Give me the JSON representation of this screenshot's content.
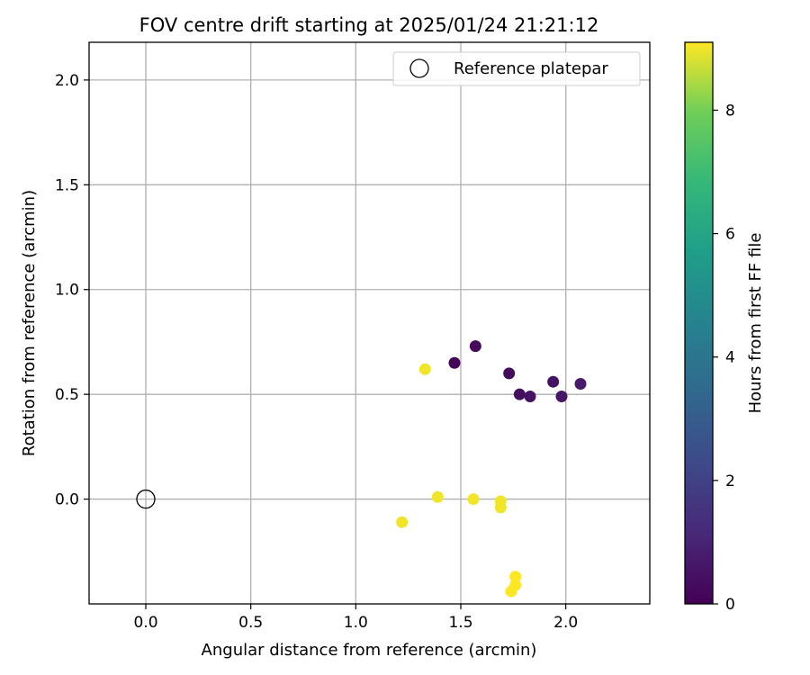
{
  "chart_data": {
    "type": "scatter",
    "title": "FOV centre drift starting at 2025/01/24 21:21:12",
    "xlabel": "Angular distance from reference (arcmin)",
    "ylabel": "Rotation from reference (arcmin)",
    "xlim": [
      -0.27,
      2.4
    ],
    "ylim": [
      -0.5,
      2.18
    ],
    "xticks": [
      "0.0",
      "0.5",
      "1.0",
      "1.5",
      "2.0"
    ],
    "yticks": [
      "0.0",
      "0.5",
      "1.0",
      "1.5",
      "2.0"
    ],
    "grid": true,
    "legend": {
      "position": "upper right",
      "entries": [
        "Reference platepar"
      ]
    },
    "reference": {
      "x": 0.0,
      "y": 0.0
    },
    "colorbar": {
      "label": "Hours from first FF file",
      "range": [
        0,
        9.1
      ],
      "ticks": [
        "0",
        "2",
        "4",
        "6",
        "8"
      ],
      "colormap": "viridis"
    },
    "points": [
      {
        "x": 1.47,
        "y": 0.65,
        "hours": 0.1
      },
      {
        "x": 1.57,
        "y": 0.73,
        "hours": 0.2
      },
      {
        "x": 1.73,
        "y": 0.6,
        "hours": 0.3
      },
      {
        "x": 1.78,
        "y": 0.5,
        "hours": 0.4
      },
      {
        "x": 1.83,
        "y": 0.49,
        "hours": 0.5
      },
      {
        "x": 1.94,
        "y": 0.56,
        "hours": 0.5
      },
      {
        "x": 1.98,
        "y": 0.49,
        "hours": 0.6
      },
      {
        "x": 2.07,
        "y": 0.55,
        "hours": 0.7
      },
      {
        "x": 1.33,
        "y": 0.62,
        "hours": 9.0
      },
      {
        "x": 1.39,
        "y": 0.01,
        "hours": 9.0
      },
      {
        "x": 1.56,
        "y": 0.0,
        "hours": 9.0
      },
      {
        "x": 1.69,
        "y": -0.01,
        "hours": 9.0
      },
      {
        "x": 1.69,
        "y": -0.04,
        "hours": 9.0
      },
      {
        "x": 1.22,
        "y": -0.11,
        "hours": 9.0
      },
      {
        "x": 1.76,
        "y": -0.37,
        "hours": 9.1
      },
      {
        "x": 1.76,
        "y": -0.41,
        "hours": 9.1
      },
      {
        "x": 1.74,
        "y": -0.44,
        "hours": 9.1
      }
    ]
  }
}
